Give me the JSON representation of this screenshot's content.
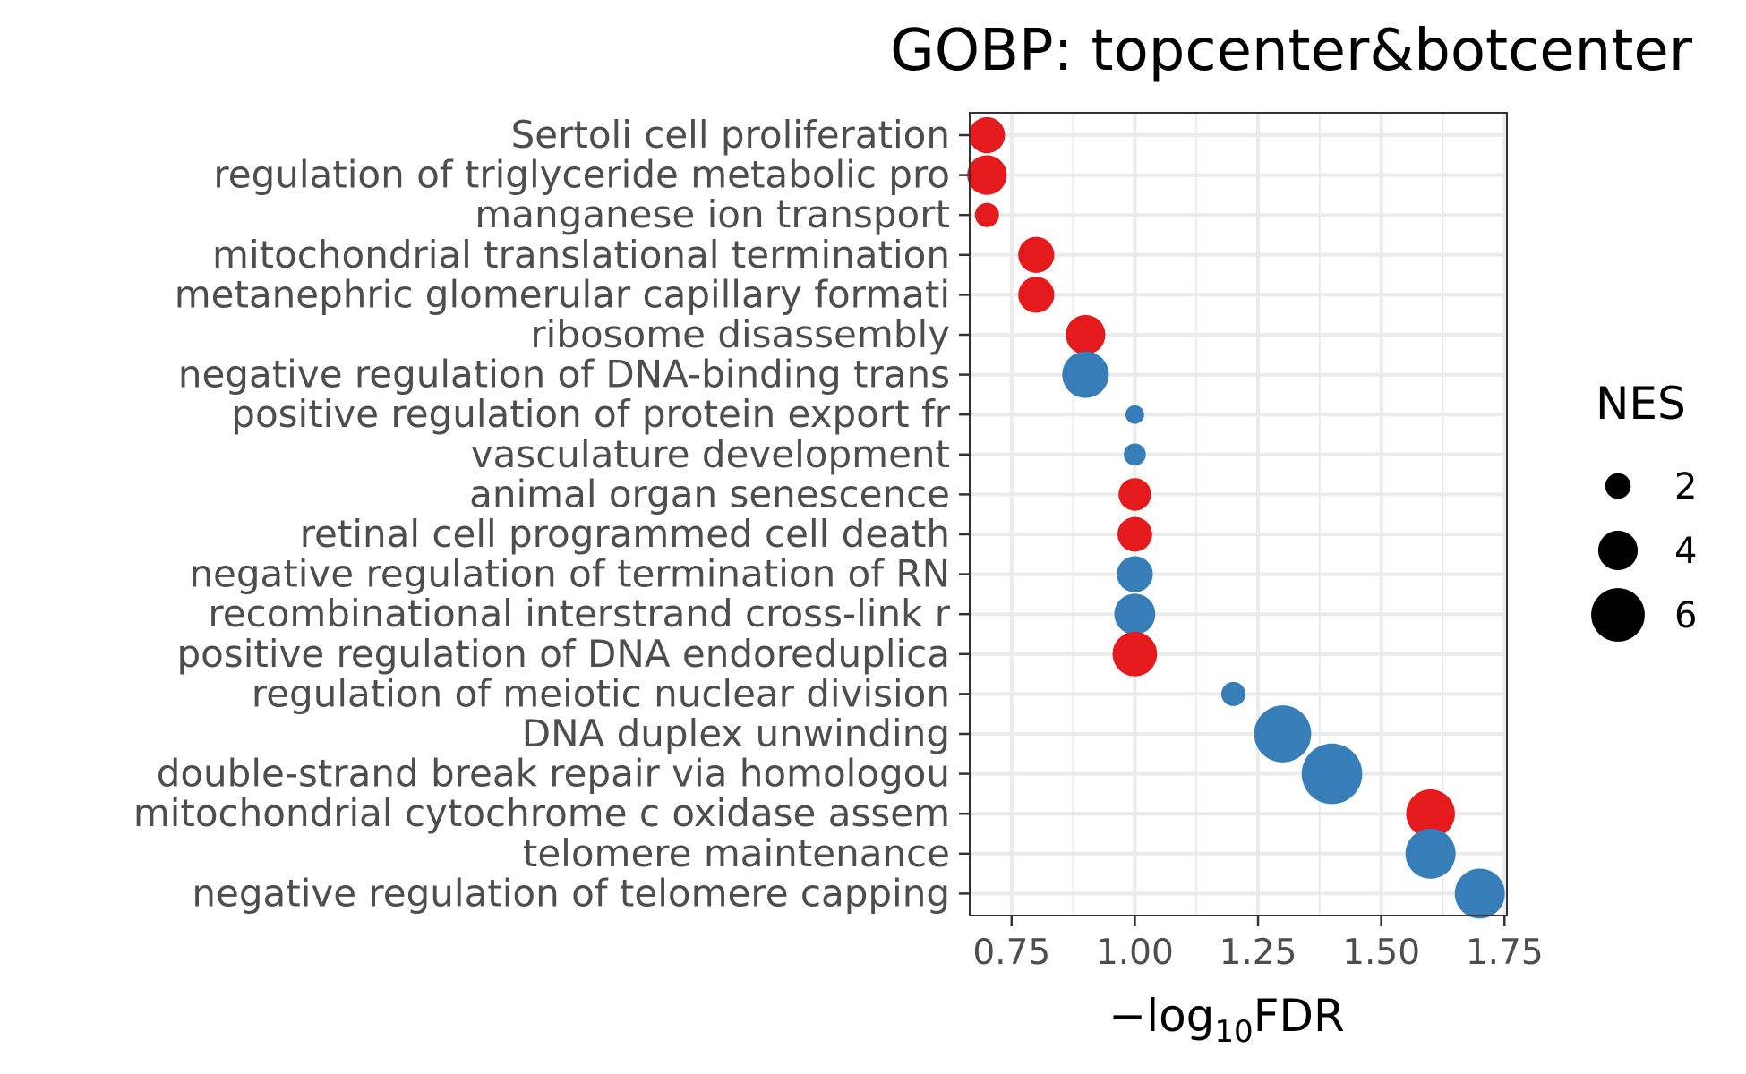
{
  "chart_data": {
    "type": "scatter",
    "title": "GOBP: topcenter&botcenter",
    "xlabel": {
      "prefix": "−log",
      "sub": "10",
      "suffix": "FDR"
    },
    "ylabel": "",
    "xlim": [
      0.665,
      1.755
    ],
    "xticks": [
      "0.75",
      "1.00",
      "1.25",
      "1.50",
      "1.75"
    ],
    "xtick_values": [
      0.75,
      1.0,
      1.25,
      1.5,
      1.75
    ],
    "grid": true,
    "legend": {
      "title": "NES",
      "placement": "right",
      "labels": [
        "2",
        "4",
        "6"
      ],
      "values": [
        2,
        4,
        6
      ]
    },
    "colors": {
      "positive": "#e41a1c",
      "negative": "#377eb8"
    },
    "points": [
      {
        "term": "Sertoli cell proliferation",
        "x": 0.7,
        "nes": 3.5,
        "color": "#e41a1c"
      },
      {
        "term": "regulation of triglyceride metabolic pro",
        "x": 0.7,
        "nes": 4.0,
        "color": "#e41a1c"
      },
      {
        "term": "manganese ion transport",
        "x": 0.7,
        "nes": 1.8,
        "color": "#e41a1c"
      },
      {
        "term": "mitochondrial translational termination",
        "x": 0.8,
        "nes": 3.5,
        "color": "#e41a1c"
      },
      {
        "term": "metanephric glomerular capillary formati",
        "x": 0.8,
        "nes": 3.5,
        "color": "#e41a1c"
      },
      {
        "term": "ribosome disassembly",
        "x": 0.9,
        "nes": 4.0,
        "color": "#e41a1c"
      },
      {
        "term": "negative regulation of DNA-binding trans",
        "x": 0.9,
        "nes": 5.0,
        "color": "#377eb8"
      },
      {
        "term": "positive regulation of protein export fr",
        "x": 1.0,
        "nes": 1.0,
        "color": "#377eb8"
      },
      {
        "term": "vasculature development",
        "x": 1.0,
        "nes": 1.5,
        "color": "#377eb8"
      },
      {
        "term": "animal organ senescence",
        "x": 1.0,
        "nes": 3.0,
        "color": "#e41a1c"
      },
      {
        "term": "retinal cell programmed cell death",
        "x": 1.0,
        "nes": 3.3,
        "color": "#e41a1c"
      },
      {
        "term": "negative regulation of termination of RN",
        "x": 1.0,
        "nes": 3.5,
        "color": "#377eb8"
      },
      {
        "term": "recombinational interstrand cross-link r",
        "x": 1.0,
        "nes": 4.2,
        "color": "#377eb8"
      },
      {
        "term": "positive regulation of DNA endoreduplica",
        "x": 1.0,
        "nes": 4.7,
        "color": "#e41a1c"
      },
      {
        "term": "regulation of meiotic nuclear division",
        "x": 1.2,
        "nes": 1.8,
        "color": "#377eb8"
      },
      {
        "term": "DNA duplex unwinding",
        "x": 1.3,
        "nes": 6.5,
        "color": "#377eb8"
      },
      {
        "term": "double-strand break repair via homologou",
        "x": 1.4,
        "nes": 7.0,
        "color": "#377eb8"
      },
      {
        "term": "mitochondrial cytochrome c oxidase assem",
        "x": 1.6,
        "nes": 5.3,
        "color": "#e41a1c"
      },
      {
        "term": "telomere maintenance",
        "x": 1.6,
        "nes": 5.5,
        "color": "#377eb8"
      },
      {
        "term": "negative regulation of telomere capping",
        "x": 1.7,
        "nes": 5.5,
        "color": "#377eb8"
      }
    ]
  }
}
